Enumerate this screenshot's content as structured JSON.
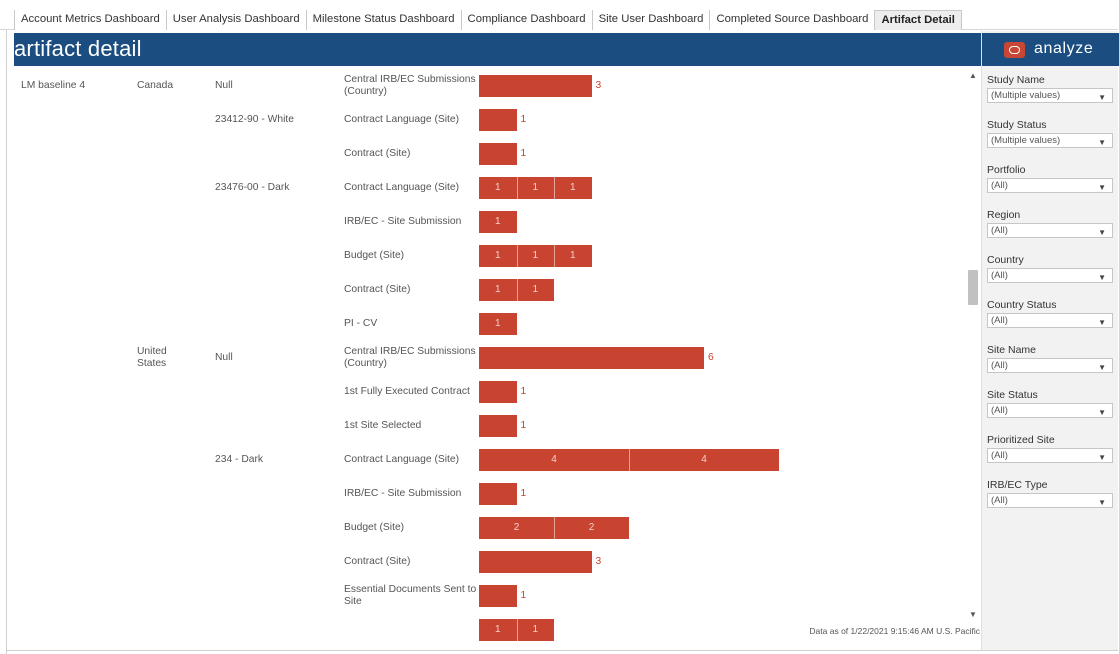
{
  "tabs": [
    "Account Metrics Dashboard",
    "User Analysis Dashboard",
    "Milestone Status Dashboard",
    "Compliance Dashboard",
    "Site User Dashboard",
    "Completed Source Dashboard",
    "Artifact Detail"
  ],
  "active_tab": "Artifact Detail",
  "header": {
    "title": "artifact detail"
  },
  "brand": {
    "text": "analyze",
    "icon": "oracle-ring-icon"
  },
  "filters": [
    {
      "label": "Study Name",
      "value": "(Multiple values)"
    },
    {
      "label": "Study Status",
      "value": "(Multiple values)"
    },
    {
      "label": "Portfolio",
      "value": "(All)"
    },
    {
      "label": "Region",
      "value": "(All)"
    },
    {
      "label": "Country",
      "value": "(All)"
    },
    {
      "label": "Country Status",
      "value": "(All)"
    },
    {
      "label": "Site Name",
      "value": "(All)"
    },
    {
      "label": "Site Status",
      "value": "(All)"
    },
    {
      "label": "Prioritized Site",
      "value": "(All)"
    },
    {
      "label": "IRB/EC Type",
      "value": "(All)"
    }
  ],
  "rows": [
    {
      "study": "LM baseline 4",
      "country": "Canada",
      "site": "Null",
      "artifact": "Central IRB/EC Submissions (Country)",
      "segments": [
        3
      ],
      "total": "3"
    },
    {
      "study": "",
      "country": "",
      "site": "23412-90 - White",
      "artifact": "Contract Language (Site)",
      "segments": [
        1
      ],
      "total": "1"
    },
    {
      "study": "",
      "country": "",
      "site": "",
      "artifact": "Contract (Site)",
      "segments": [
        1
      ],
      "total": "1"
    },
    {
      "study": "",
      "country": "",
      "site": "23476-00 - Dark",
      "artifact": "Contract Language (Site)",
      "segments": [
        1,
        1,
        1
      ],
      "total": ""
    },
    {
      "study": "",
      "country": "",
      "site": "",
      "artifact": "IRB/EC - Site Submission",
      "segments": [
        1
      ],
      "total": ""
    },
    {
      "study": "",
      "country": "",
      "site": "",
      "artifact": "Budget (Site)",
      "segments": [
        1,
        1,
        1
      ],
      "total": ""
    },
    {
      "study": "",
      "country": "",
      "site": "",
      "artifact": "Contract (Site)",
      "segments": [
        1,
        1
      ],
      "total": ""
    },
    {
      "study": "",
      "country": "",
      "site": "",
      "artifact": "PI - CV",
      "segments": [
        1
      ],
      "total": ""
    },
    {
      "study": "",
      "country": "United States",
      "site": "Null",
      "artifact": "Central IRB/EC Submissions (Country)",
      "segments": [
        6
      ],
      "total": "6"
    },
    {
      "study": "",
      "country": "",
      "site": "",
      "artifact": "1st Fully Executed Contract",
      "segments": [
        1
      ],
      "total": "1"
    },
    {
      "study": "",
      "country": "",
      "site": "",
      "artifact": "1st Site Selected",
      "segments": [
        1
      ],
      "total": "1"
    },
    {
      "study": "",
      "country": "",
      "site": "234 - Dark",
      "artifact": "Contract Language (Site)",
      "segments": [
        4,
        4
      ],
      "total": ""
    },
    {
      "study": "",
      "country": "",
      "site": "",
      "artifact": "IRB/EC - Site Submission",
      "segments": [
        1
      ],
      "total": "1"
    },
    {
      "study": "",
      "country": "",
      "site": "",
      "artifact": "Budget (Site)",
      "segments": [
        2,
        2
      ],
      "total": ""
    },
    {
      "study": "",
      "country": "",
      "site": "",
      "artifact": "Contract (Site)",
      "segments": [
        3
      ],
      "total": "3"
    },
    {
      "study": "",
      "country": "",
      "site": "",
      "artifact": "Essential Documents Sent to Site",
      "segments": [
        1
      ],
      "total": "1"
    },
    {
      "study": "",
      "country": "",
      "site": "",
      "artifact": "",
      "segments": [
        1,
        1
      ],
      "total": ""
    }
  ],
  "colors": {
    "bar": "#c94331",
    "header": "#1b4d80",
    "brand_icon": "#c74634"
  },
  "footer": {
    "text": "Data as of 1/22/2021 9:15:46 AM U.S. Pacific"
  }
}
